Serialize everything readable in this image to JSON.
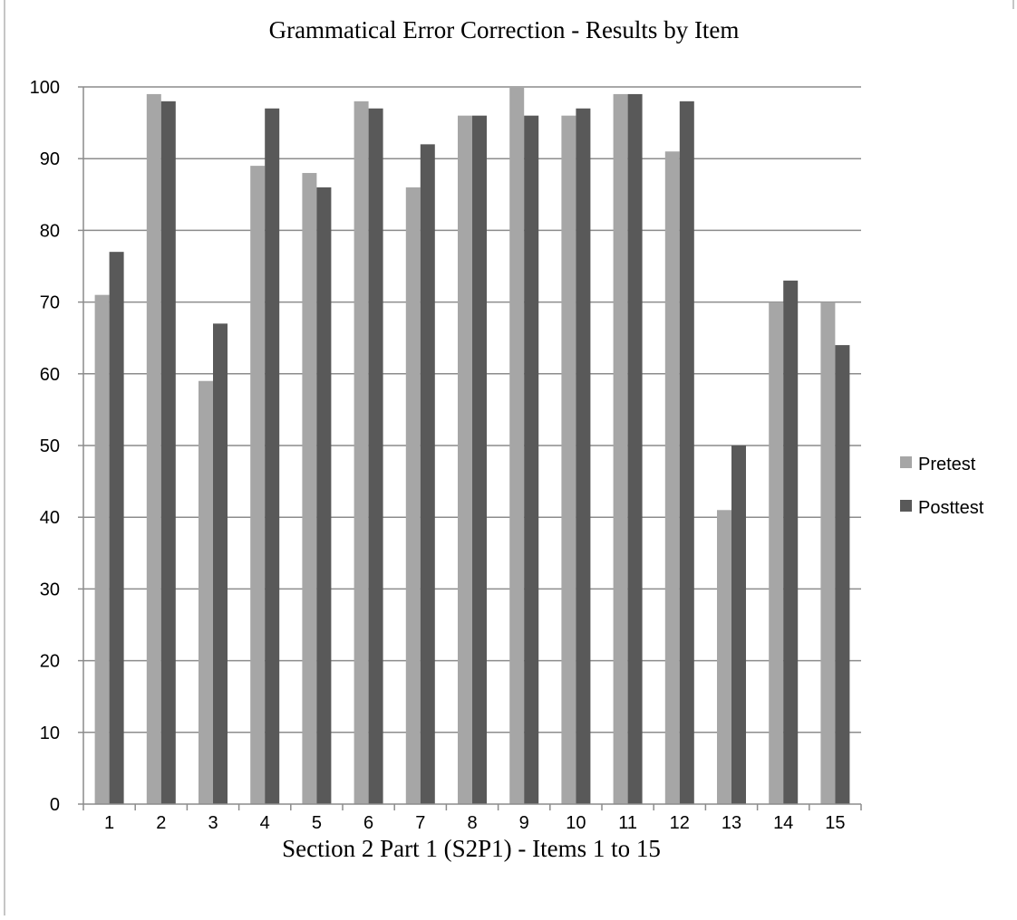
{
  "chart_data": {
    "type": "bar",
    "title": "Grammatical Error Correction - Results by Item",
    "xlabel": "Section 2 Part 1 (S2P1) - Items 1 to 15",
    "ylabel": "",
    "ylim": [
      0,
      100
    ],
    "yticks": [
      "0",
      "10",
      "20",
      "30",
      "40",
      "50",
      "60",
      "70",
      "80",
      "90",
      "100"
    ],
    "grid": true,
    "legend_position": "right",
    "categories": [
      "1",
      "2",
      "3",
      "4",
      "5",
      "6",
      "7",
      "8",
      "9",
      "10",
      "11",
      "12",
      "13",
      "14",
      "15"
    ],
    "series": [
      {
        "name": "Pretest",
        "color": "#a6a6a6",
        "values": [
          71,
          99,
          59,
          89,
          88,
          98,
          86,
          96,
          100,
          96,
          99,
          91,
          41,
          70,
          70
        ]
      },
      {
        "name": "Posttest",
        "color": "#595959",
        "values": [
          77,
          98,
          67,
          97,
          86,
          97,
          92,
          96,
          96,
          97,
          99,
          98,
          50,
          73,
          64
        ]
      }
    ]
  }
}
